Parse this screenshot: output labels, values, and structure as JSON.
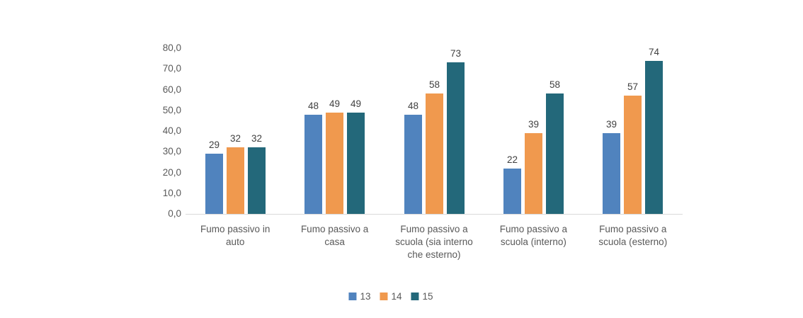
{
  "chart_data": {
    "type": "bar",
    "title": "",
    "categories": [
      "Fumo passivo in auto",
      "Fumo passivo a casa",
      "Fumo passivo a scuola (sia interno che esterno)",
      "Fumo passivo a scuola (interno)",
      "Fumo passivo a scuola (esterno)"
    ],
    "series": [
      {
        "name": "13",
        "color": "#5083BE",
        "values": [
          29,
          48,
          48,
          22,
          39
        ]
      },
      {
        "name": "14",
        "color": "#F0994E",
        "values": [
          32,
          49,
          58,
          39,
          57
        ]
      },
      {
        "name": "15",
        "color": "#23687A",
        "values": [
          32,
          49,
          73,
          58,
          74
        ]
      }
    ],
    "xlabel": "",
    "ylabel": "",
    "ylim": [
      0,
      80
    ],
    "ytick_step": 10,
    "ytick_labels": [
      "0,0",
      "10,0",
      "20,0",
      "30,0",
      "40,0",
      "50,0",
      "60,0",
      "70,0",
      "80,0"
    ],
    "grid": false,
    "data_labels": true,
    "legend_position": "bottom",
    "colors": {
      "background": "#FFFFFF",
      "axis_line": "#D9D9D9",
      "tick_text": "#595959",
      "data_label_text": "#404040",
      "legend_text": "#595959"
    }
  }
}
